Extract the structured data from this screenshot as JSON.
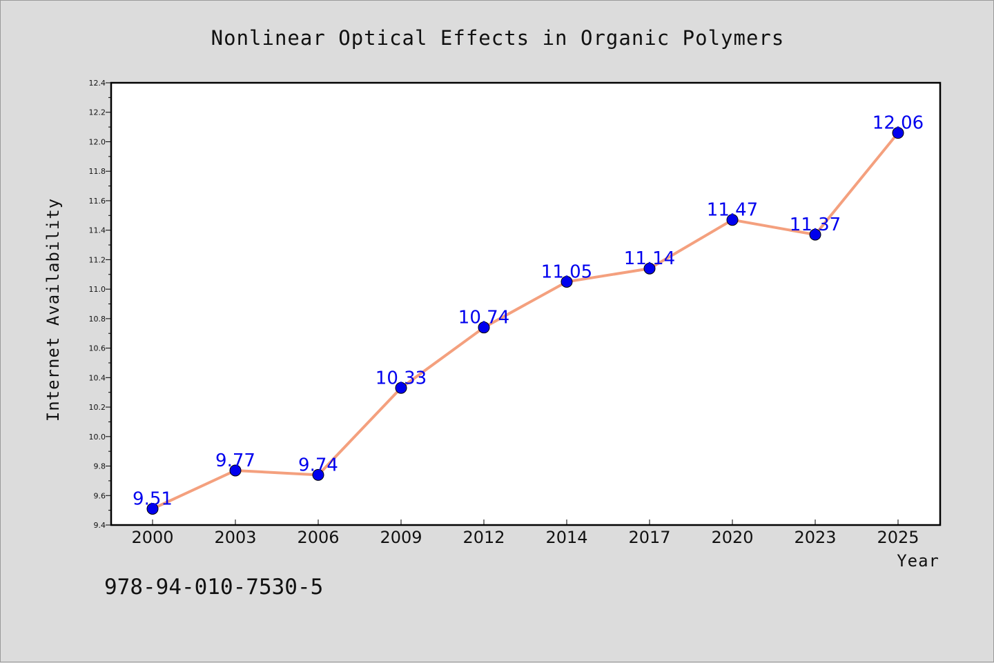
{
  "chart_data": {
    "type": "line",
    "title": "Nonlinear Optical Effects in Organic Polymers",
    "xlabel": "Year",
    "ylabel": "Internet Availability",
    "categories": [
      "2000",
      "2003",
      "2006",
      "2009",
      "2012",
      "2014",
      "2017",
      "2020",
      "2023",
      "2025"
    ],
    "series": [
      {
        "values": [
          9.51,
          9.77,
          9.74,
          10.33,
          10.74,
          11.05,
          11.14,
          11.47,
          11.37,
          12.06
        ],
        "line_color": "#f4a07e",
        "marker_color": "#0000ee",
        "label_color": "#0000ee"
      }
    ],
    "ylim": [
      9.4,
      12.4
    ],
    "yticks": [
      "9.4",
      "9.6",
      "9.8",
      "10.0",
      "10.2",
      "10.4",
      "10.6",
      "10.8",
      "11.0",
      "11.2",
      "11.4",
      "11.6",
      "11.8",
      "12.0",
      "12.2",
      "12.4"
    ],
    "grid": false,
    "data_labels": true
  },
  "footer": {
    "isbn": "978-94-010-7530-5"
  }
}
